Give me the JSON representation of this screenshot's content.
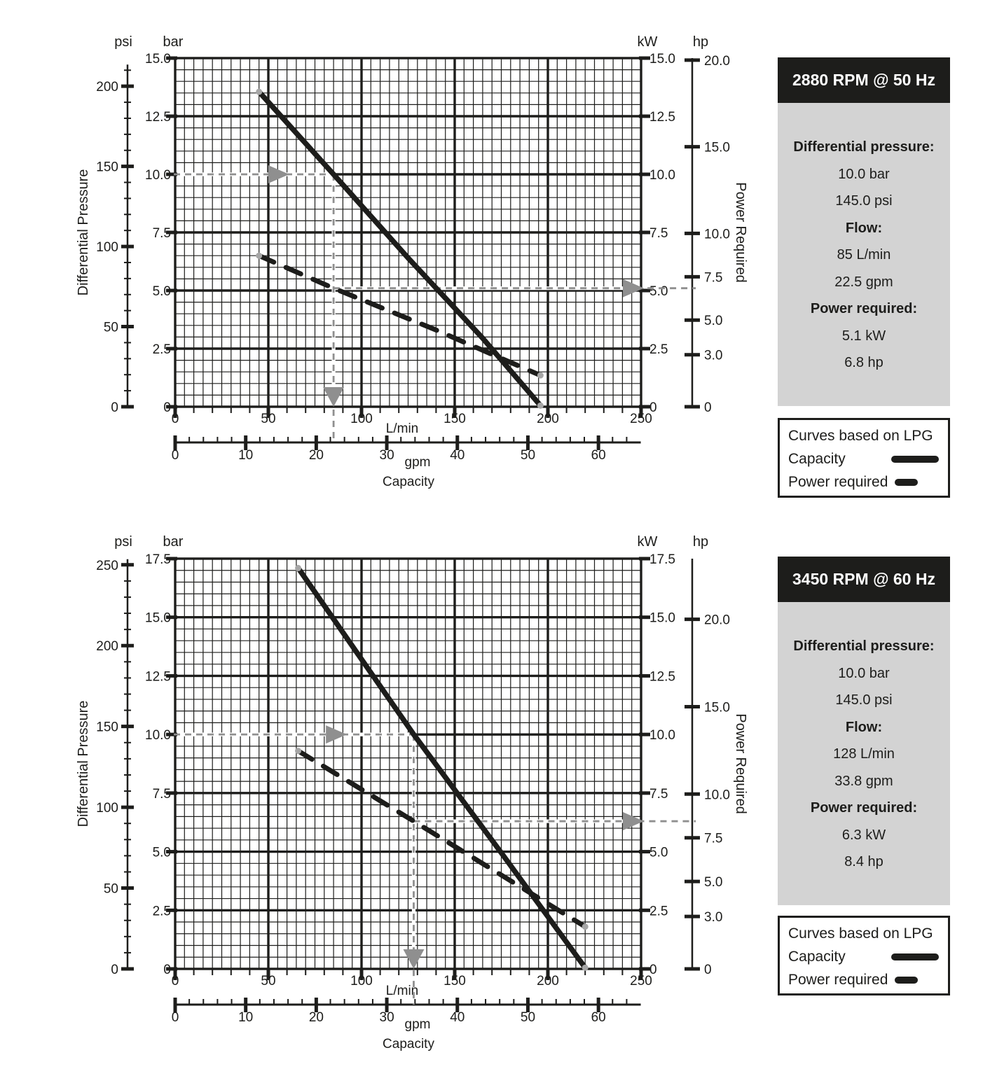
{
  "colors": {
    "ink": "#1d1d1b",
    "guide": "#8f8f8f",
    "endpoint_dot": "#a6a6a6",
    "panel_header_bg": "#1d1d1b",
    "panel_header_text": "#ffffff",
    "panel_body_bg": "#d3d3d3"
  },
  "chart_data": [
    {
      "type": "line",
      "title": "2880 RPM @ 50 Hz",
      "x_axis": {
        "label": "L/min",
        "title": "Capacity",
        "range": [
          0,
          250
        ],
        "major_ticks": [
          0,
          50,
          100,
          150,
          200,
          250
        ],
        "minor_step": 10,
        "grid_minor_step": 5
      },
      "x_axis_secondary": {
        "label": "gpm",
        "major_ticks": [
          0,
          10,
          20,
          30,
          40,
          50,
          60
        ],
        "minor_step": 2,
        "max": 66,
        "lmin_per_gpm": 3.7854
      },
      "y_axis_left": {
        "label": "bar",
        "title": "Differential Pressure",
        "range": [
          0,
          15
        ],
        "major_ticks": [
          2.5,
          5,
          7.5,
          10,
          12.5,
          15
        ],
        "tick_labels": [
          "2.5",
          "5.0",
          "7.5",
          "10.0",
          "12.5",
          "15.0"
        ],
        "zero_label": "0",
        "grid_minor_step": 0.5
      },
      "y_axis_left_secondary": {
        "label": "psi",
        "major_ticks": [
          0,
          50,
          100,
          150,
          200
        ],
        "minor_step": 10,
        "bar_per_psi": 0.068948
      },
      "y_axis_right": {
        "label": "kW",
        "title": "Power Required",
        "major_ticks": [
          2.5,
          5,
          7.5,
          10,
          12.5,
          15
        ],
        "tick_labels": [
          "2.5",
          "5.0",
          "7.5",
          "10.0",
          "12.5",
          "15.0"
        ],
        "zero_label": "0"
      },
      "y_axis_right_secondary": {
        "label": "hp",
        "major_ticks": [
          3,
          5,
          7.5,
          10,
          15,
          20
        ],
        "tick_labels": [
          "3.0",
          "5.0",
          "7.5",
          "10.0",
          "15.0",
          "20.0"
        ],
        "zero_label": "0",
        "kw_per_hp": 0.7457
      },
      "series": [
        {
          "name": "Capacity",
          "y_axis": "bar",
          "style": "solid",
          "points_lmin_y": [
            [
              45,
              13.55
            ],
            [
              85,
              10.0
            ],
            [
              125,
              6.4
            ],
            [
              165,
              2.95
            ],
            [
              196,
              0.05
            ]
          ]
        },
        {
          "name": "Power required",
          "y_axis": "kW",
          "style": "dashed",
          "points_lmin_y": [
            [
              45,
              6.5
            ],
            [
              85,
              5.1
            ],
            [
              140,
              3.3
            ],
            [
              196,
              1.35
            ]
          ]
        }
      ],
      "operating_point": {
        "pressure_bar": 10.0,
        "flow_lmin": 85,
        "power_kw": 5.1
      },
      "info_panel": {
        "header": "2880 RPM @ 50 Hz",
        "rows": [
          {
            "style": "bold",
            "text": "Differential pressure:"
          },
          {
            "style": "normal",
            "text": "10.0 bar"
          },
          {
            "style": "normal",
            "text": "145.0 psi"
          },
          {
            "style": "bold",
            "text": "Flow:"
          },
          {
            "style": "normal",
            "text": "85 L/min"
          },
          {
            "style": "normal",
            "text": "22.5 gpm"
          },
          {
            "style": "bold",
            "text": "Power required:"
          },
          {
            "style": "normal",
            "text": "5.1 kW"
          },
          {
            "style": "normal",
            "text": "6.8 hp"
          }
        ]
      },
      "legend": {
        "note": "Curves based on LPG",
        "items": [
          {
            "label": "Capacity",
            "style": "solid"
          },
          {
            "label": "Power required",
            "style": "dashed"
          }
        ]
      }
    },
    {
      "type": "line",
      "title": "3450 RPM @ 60 Hz",
      "x_axis": {
        "label": "L/min",
        "title": "Capacity",
        "range": [
          0,
          250
        ],
        "major_ticks": [
          0,
          50,
          100,
          150,
          200,
          250
        ],
        "minor_step": 10,
        "grid_minor_step": 5
      },
      "x_axis_secondary": {
        "label": "gpm",
        "major_ticks": [
          0,
          10,
          20,
          30,
          40,
          50,
          60
        ],
        "minor_step": 2,
        "max": 66,
        "lmin_per_gpm": 3.7854
      },
      "y_axis_left": {
        "label": "bar",
        "title": "Differential Pressure",
        "range": [
          0,
          17.5
        ],
        "major_ticks": [
          2.5,
          5,
          7.5,
          10,
          12.5,
          15,
          17.5
        ],
        "tick_labels": [
          "2.5",
          "5.0",
          "7.5",
          "10.0",
          "12.5",
          "15.0",
          "17.5"
        ],
        "zero_label": "0",
        "grid_minor_step": 0.5
      },
      "y_axis_left_secondary": {
        "label": "psi",
        "major_ticks": [
          0,
          50,
          100,
          150,
          200,
          250
        ],
        "minor_step": 10,
        "bar_per_psi": 0.068948
      },
      "y_axis_right": {
        "label": "kW",
        "title": "Power Required",
        "major_ticks": [
          2.5,
          5,
          7.5,
          10,
          12.5,
          15,
          17.5
        ],
        "tick_labels": [
          "2.5",
          "5.0",
          "7.5",
          "10.0",
          "12.5",
          "15.0",
          "17.5"
        ],
        "zero_label": "0"
      },
      "y_axis_right_secondary": {
        "label": "hp",
        "major_ticks": [
          3,
          5,
          7.5,
          10,
          15,
          20
        ],
        "tick_labels": [
          "3.0",
          "5.0",
          "7.5",
          "10.0",
          "15.0",
          "20.0"
        ],
        "zero_label": "0",
        "kw_per_hp": 0.7457
      },
      "series": [
        {
          "name": "Capacity",
          "y_axis": "bar",
          "style": "solid",
          "points_lmin_y": [
            [
              66,
              17.1
            ],
            [
              128,
              10.0
            ],
            [
              175,
              4.95
            ],
            [
              220,
              0.05
            ]
          ]
        },
        {
          "name": "Power required",
          "y_axis": "kW",
          "style": "dashed",
          "points_lmin_y": [
            [
              66,
              9.3
            ],
            [
              128,
              6.3
            ],
            [
              220,
              1.8
            ]
          ]
        }
      ],
      "operating_point": {
        "pressure_bar": 10.0,
        "flow_lmin": 128,
        "power_kw": 6.3
      },
      "info_panel": {
        "header": "3450 RPM @ 60 Hz",
        "rows": [
          {
            "style": "bold",
            "text": "Differential pressure:"
          },
          {
            "style": "normal",
            "text": "10.0 bar"
          },
          {
            "style": "normal",
            "text": "145.0 psi"
          },
          {
            "style": "bold",
            "text": "Flow:"
          },
          {
            "style": "normal",
            "text": "128 L/min"
          },
          {
            "style": "normal",
            "text": "33.8 gpm"
          },
          {
            "style": "bold",
            "text": "Power required:"
          },
          {
            "style": "normal",
            "text": "6.3 kW"
          },
          {
            "style": "normal",
            "text": "8.4 hp"
          }
        ]
      },
      "legend": {
        "note": "Curves based on LPG",
        "items": [
          {
            "label": "Capacity",
            "style": "solid"
          },
          {
            "label": "Power required",
            "style": "dashed"
          }
        ]
      }
    }
  ]
}
